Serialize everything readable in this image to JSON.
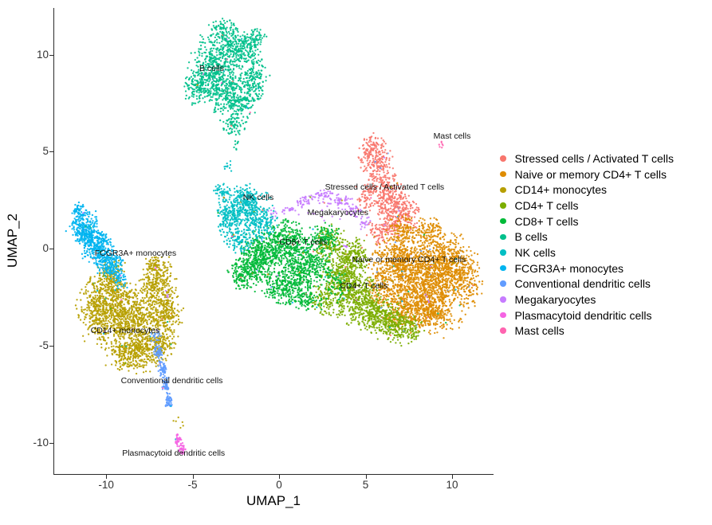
{
  "figure_title": "UMAP single-cell cluster plot",
  "chart_data": {
    "type": "scatter",
    "title": "",
    "xlabel": "UMAP_1",
    "ylabel": "UMAP_2",
    "xlim": [
      -13,
      12.35
    ],
    "ylim": [
      -11.6,
      12.4
    ],
    "x_ticks": [
      -10,
      -5,
      0,
      5,
      10
    ],
    "y_ticks": [
      10,
      5,
      0,
      -5,
      -10
    ],
    "grid": false,
    "legend_position": "right",
    "point_color_note": "ggplot2 hue palette, 12 classes",
    "series": [
      {
        "name": "Stressed cells / Activated T cells",
        "color": "#F8766D",
        "label": {
          "text": "Stressed cells / Activated T cells",
          "x": 6.1,
          "y": 3.15
        },
        "blobs": [
          [
            5.55,
            4.6,
            1.05,
            1.25,
            210
          ],
          [
            6.15,
            3.0,
            1.2,
            1.3,
            230
          ],
          [
            6.95,
            1.8,
            1.3,
            1.2,
            270
          ],
          [
            5.9,
            0.9,
            0.9,
            0.8,
            90
          ],
          [
            5.0,
            2.8,
            0.6,
            1.0,
            60
          ],
          [
            5.3,
            5.3,
            0.5,
            0.55,
            30
          ]
        ]
      },
      {
        "name": "Naive or memory CD4+ T cells",
        "color": "#DE8C00",
        "label": {
          "text": "Naive or memory CD4+ T cells",
          "x": 7.5,
          "y": -0.55
        },
        "blobs": [
          [
            8.3,
            -1.3,
            2.3,
            2.2,
            900
          ],
          [
            9.9,
            -0.9,
            1.7,
            1.8,
            480
          ],
          [
            6.7,
            -0.9,
            1.6,
            1.5,
            380
          ],
          [
            7.6,
            -3.0,
            2.0,
            1.4,
            420
          ],
          [
            9.1,
            -3.3,
            1.7,
            1.2,
            260
          ],
          [
            7.2,
            0.9,
            1.2,
            0.95,
            150
          ],
          [
            8.7,
            0.9,
            1.0,
            0.8,
            100
          ],
          [
            10.9,
            -2.0,
            0.95,
            1.1,
            90
          ],
          [
            5.8,
            -2.1,
            1.0,
            1.0,
            90
          ]
        ]
      },
      {
        "name": "CD14+ monocytes",
        "color": "#B79F00",
        "label": {
          "text": "CD14+ monocytes",
          "x": -8.9,
          "y": -4.2
        },
        "blobs": [
          [
            -8.8,
            -3.6,
            2.3,
            2.0,
            880
          ],
          [
            -10.4,
            -2.9,
            1.4,
            1.5,
            340
          ],
          [
            -7.0,
            -1.7,
            1.1,
            1.3,
            260
          ],
          [
            -9.7,
            -1.6,
            0.95,
            1.15,
            200
          ],
          [
            -8.2,
            -5.4,
            1.8,
            1.05,
            330
          ],
          [
            -6.5,
            -3.3,
            1.0,
            1.3,
            230
          ],
          [
            -6.9,
            -4.9,
            1.0,
            0.85,
            150
          ],
          [
            -7.3,
            -0.8,
            0.55,
            0.5,
            40
          ],
          [
            -5.8,
            -9.0,
            0.4,
            0.55,
            6
          ]
        ]
      },
      {
        "name": "CD4+ T cells",
        "color": "#7CAE00",
        "label": {
          "text": "CD4+ T cells",
          "x": 4.9,
          "y": -1.9
        },
        "blobs": [
          [
            3.7,
            -1.3,
            1.35,
            1.3,
            350
          ],
          [
            4.5,
            -2.6,
            1.6,
            1.4,
            420
          ],
          [
            5.9,
            -3.5,
            1.6,
            1.0,
            330
          ],
          [
            7.1,
            -4.15,
            1.3,
            0.85,
            200
          ],
          [
            2.9,
            0.3,
            1.0,
            1.0,
            150
          ],
          [
            4.4,
            -0.3,
            1.0,
            0.9,
            150
          ],
          [
            2.6,
            -2.6,
            0.95,
            0.9,
            100
          ]
        ]
      },
      {
        "name": "CD8+ T cells",
        "color": "#00BA38",
        "label": {
          "text": "CD8+ T cells",
          "x": 1.4,
          "y": 0.35
        },
        "blobs": [
          [
            -1.1,
            -0.4,
            1.4,
            1.4,
            420
          ],
          [
            0.4,
            0.3,
            1.5,
            1.25,
            380
          ],
          [
            1.6,
            -0.9,
            1.5,
            1.3,
            380
          ],
          [
            0.2,
            -1.9,
            1.3,
            1.0,
            260
          ],
          [
            -2.0,
            -1.3,
            1.0,
            0.95,
            170
          ],
          [
            2.7,
            0.6,
            1.0,
            0.8,
            120
          ],
          [
            1.6,
            -2.6,
            1.2,
            0.7,
            110
          ],
          [
            3.3,
            -1.9,
            0.9,
            0.9,
            60
          ]
        ]
      },
      {
        "name": "B cells",
        "color": "#00C08B",
        "label": {
          "text": "B cells",
          "x": -3.9,
          "y": 9.3
        },
        "blobs": [
          [
            -3.6,
            9.3,
            1.7,
            1.8,
            500
          ],
          [
            -2.2,
            10.4,
            1.4,
            1.0,
            250
          ],
          [
            -2.5,
            7.8,
            1.6,
            1.25,
            300
          ],
          [
            -4.6,
            8.3,
            1.0,
            1.0,
            150
          ],
          [
            -1.4,
            8.9,
            0.9,
            1.3,
            150
          ],
          [
            -3.2,
            11.3,
            1.0,
            0.6,
            90
          ],
          [
            -2.7,
            6.4,
            0.8,
            0.6,
            70
          ],
          [
            -1.3,
            10.9,
            0.65,
            0.5,
            40
          ],
          [
            -2.45,
            5.3,
            0.25,
            0.5,
            8
          ]
        ]
      },
      {
        "name": "NK cells",
        "color": "#00BFC4",
        "label": {
          "text": "NK cells",
          "x": -1.2,
          "y": 2.65
        },
        "blobs": [
          [
            -1.9,
            2.3,
            1.4,
            1.1,
            330
          ],
          [
            -2.8,
            1.5,
            1.0,
            1.0,
            180
          ],
          [
            -1.0,
            1.3,
            1.0,
            0.9,
            170
          ],
          [
            -2.3,
            0.4,
            0.9,
            0.7,
            100
          ],
          [
            -3.4,
            2.9,
            0.6,
            0.6,
            50
          ],
          [
            -3.0,
            4.2,
            0.3,
            0.5,
            10
          ]
        ]
      },
      {
        "name": "FCGR3A+ monocytes",
        "color": "#00B4F0",
        "label": {
          "text": "FCGR3A+ monocytes",
          "x": -8.3,
          "y": -0.25
        },
        "blobs": [
          [
            -11.2,
            1.0,
            0.95,
            0.95,
            270
          ],
          [
            -10.5,
            0.1,
            1.0,
            0.95,
            260
          ],
          [
            -9.8,
            -0.8,
            0.9,
            0.8,
            200
          ],
          [
            -11.6,
            1.9,
            0.5,
            0.5,
            60
          ],
          [
            -9.2,
            -1.6,
            0.5,
            0.5,
            40
          ]
        ]
      },
      {
        "name": "Conventional dendritic cells",
        "color": "#619CFF",
        "label": {
          "text": "Conventional dendritic cells",
          "x": -6.2,
          "y": -6.8
        },
        "blobs": [
          [
            -6.95,
            -5.3,
            0.35,
            0.45,
            50
          ],
          [
            -6.75,
            -6.2,
            0.25,
            0.5,
            55
          ],
          [
            -6.55,
            -7.0,
            0.25,
            0.5,
            55
          ],
          [
            -6.4,
            -7.8,
            0.25,
            0.45,
            50
          ],
          [
            -7.2,
            -4.5,
            0.4,
            0.4,
            20
          ]
        ]
      },
      {
        "name": "Megakaryocytes",
        "color": "#C77CFF",
        "label": {
          "text": "Megakaryocytes",
          "x": 3.4,
          "y": 1.85
        },
        "blobs": [
          [
            0.5,
            2.0,
            0.5,
            0.3,
            18
          ],
          [
            1.5,
            2.5,
            0.8,
            0.3,
            35
          ],
          [
            2.6,
            2.8,
            0.8,
            0.3,
            40
          ],
          [
            3.6,
            2.5,
            0.6,
            0.35,
            35
          ],
          [
            4.3,
            1.9,
            0.5,
            0.4,
            30
          ],
          [
            4.9,
            1.3,
            0.4,
            0.4,
            20
          ],
          [
            2.8,
            2.1,
            2.0,
            0.8,
            30
          ],
          [
            -0.3,
            1.8,
            0.5,
            0.3,
            10
          ],
          [
            3.9,
            0.2,
            0.3,
            0.3,
            6
          ],
          [
            8.5,
            -2.5,
            0.25,
            0.25,
            4
          ],
          [
            -6.5,
            -2.4,
            0.2,
            0.3,
            4
          ]
        ]
      },
      {
        "name": "Plasmacytoid dendritic cells",
        "color": "#F564E3",
        "label": {
          "text": "Plasmacytoid dendritic cells",
          "x": -6.1,
          "y": -10.55
        },
        "blobs": [
          [
            -5.85,
            -9.85,
            0.22,
            0.35,
            35
          ],
          [
            -5.6,
            -10.3,
            0.2,
            0.3,
            30
          ]
        ]
      },
      {
        "name": "Mast cells",
        "color": "#FF64B0",
        "label": {
          "text": "Mast cells",
          "x": 10.0,
          "y": 5.8
        },
        "blobs": [
          [
            9.35,
            5.35,
            0.18,
            0.2,
            7
          ]
        ]
      }
    ]
  }
}
